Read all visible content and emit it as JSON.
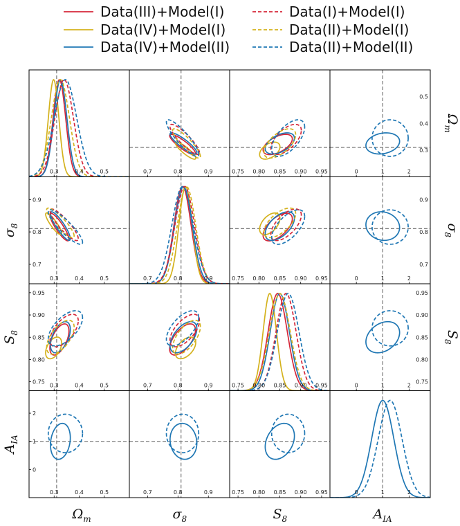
{
  "chart_data": {
    "type": "corner",
    "parameters": [
      {
        "id": "Om",
        "label": "Ω_m",
        "ticks": [
          "0.3",
          "0.4",
          "0.5"
        ],
        "range": [
          0.2,
          0.6
        ],
        "fiducial": 0.31,
        "rticks": [
          "0.5",
          "0.4",
          "0.3"
        ]
      },
      {
        "id": "s8",
        "label": "σ_8",
        "ticks": [
          "0.7",
          "0.8",
          "0.9"
        ],
        "range": [
          0.64,
          0.97
        ],
        "fiducial": 0.81,
        "rticks": [
          "0.9",
          "0.8",
          "0.7"
        ]
      },
      {
        "id": "S8",
        "label": "S_8",
        "ticks": [
          "0.75",
          "0.80",
          "0.85",
          "0.90",
          "0.95"
        ],
        "range": [
          0.73,
          0.97
        ],
        "fiducial": null,
        "rticks": [
          "0.95",
          "0.90",
          "0.85",
          "0.80",
          "0.75"
        ]
      },
      {
        "id": "AIA",
        "label": "A_IA",
        "ticks": [
          "0",
          "1",
          "2"
        ],
        "range": [
          -1.0,
          2.8
        ],
        "fiducial": 1.0
      }
    ],
    "series": [
      {
        "name": "Data(III)+Model(I)",
        "color": "#d62739",
        "dash": false,
        "params": {
          "Om": [
            0.321,
            0.025
          ],
          "s8": [
            0.815,
            0.028
          ],
          "S8": [
            0.845,
            0.023
          ]
        },
        "corr": {
          "Om|s8": -0.88,
          "Om|S8": 0.55,
          "s8|S8": 0.6
        }
      },
      {
        "name": "Data(IV)+Model(I)",
        "color": "#d4b21d",
        "dash": false,
        "params": {
          "Om": [
            0.298,
            0.021
          ],
          "s8": [
            0.825,
            0.022
          ],
          "S8": [
            0.826,
            0.016
          ]
        },
        "corr": {
          "Om|s8": -0.88,
          "Om|S8": 0.45,
          "s8|S8": 0.5
        }
      },
      {
        "name": "Data(IV)+Model(II)",
        "color": "#1f77b4",
        "dash": false,
        "params": {
          "Om": [
            0.325,
            0.026
          ],
          "s8": [
            0.818,
            0.029
          ],
          "S8": [
            0.85,
            0.023
          ],
          "AIA": [
            1.0,
            0.42
          ]
        },
        "corr": {
          "Om|s8": -0.88,
          "Om|S8": 0.5,
          "s8|S8": 0.55,
          "Om|AIA": 0.2,
          "s8|AIA": -0.1,
          "S8|AIA": 0.3
        }
      },
      {
        "name": "Data(I)+Model(I)",
        "color": "#d62739",
        "dash": true,
        "params": {
          "Om": [
            0.34,
            0.037
          ],
          "s8": [
            0.822,
            0.032
          ],
          "S8": [
            0.865,
            0.024
          ]
        },
        "corr": {
          "Om|s8": -0.88,
          "Om|S8": 0.6,
          "s8|S8": 0.62
        }
      },
      {
        "name": "Data(II)+Model(I)",
        "color": "#d4b21d",
        "dash": true,
        "params": {
          "Om": [
            0.325,
            0.036
          ],
          "s8": [
            0.828,
            0.03
          ],
          "S8": [
            0.85,
            0.025
          ]
        },
        "corr": {
          "Om|s8": -0.88,
          "Om|S8": 0.6,
          "s8|S8": 0.62
        }
      },
      {
        "name": "Data(II)+Model(II)",
        "color": "#1f77b4",
        "dash": true,
        "params": {
          "Om": [
            0.345,
            0.045
          ],
          "s8": [
            0.815,
            0.035
          ],
          "S8": [
            0.87,
            0.026
          ],
          "AIA": [
            1.28,
            0.45
          ]
        },
        "corr": {
          "Om|s8": -0.88,
          "Om|S8": 0.6,
          "s8|S8": 0.62,
          "Om|AIA": 0.0,
          "s8|AIA": 0.0,
          "S8|AIA": 0.0
        }
      }
    ]
  }
}
